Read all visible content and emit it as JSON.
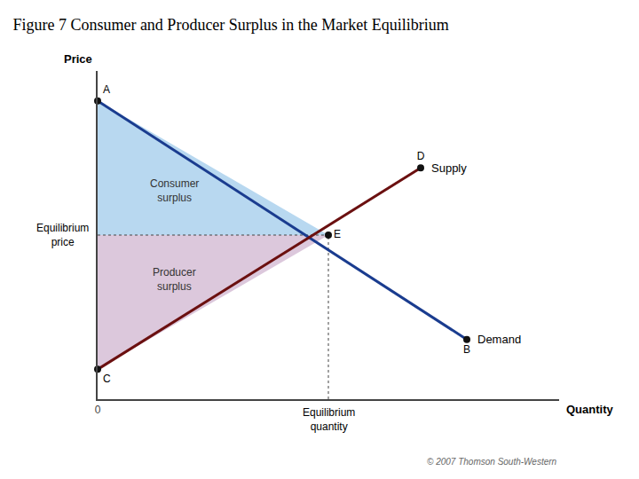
{
  "chart_data": {
    "type": "line",
    "title": "Figure 7 Consumer and Producer Surplus in the Market Equilibrium",
    "x_label": "Quantity",
    "y_label": "Price",
    "xlim": [
      0,
      10
    ],
    "ylim": [
      0,
      11
    ],
    "xticks": [
      0
    ],
    "yticks": [],
    "grid": false,
    "series": [
      {
        "name": "Demand",
        "color": "#1a3c8f",
        "x": [
          0,
          8
        ],
        "values": [
          10,
          2
        ],
        "point_labels": [
          "A",
          "B"
        ]
      },
      {
        "name": "Supply",
        "color": "#6b1010",
        "x": [
          0,
          7
        ],
        "values": [
          1,
          7.75
        ],
        "point_labels": [
          "C",
          "D"
        ]
      }
    ],
    "point_color": "#111111",
    "equilibrium": {
      "x": 5,
      "y": 5.5,
      "label": "E",
      "price_label": "Equilibrium\nprice",
      "quantity_label": "Equilibrium\nquantity",
      "color": "#444444"
    },
    "areas": [
      {
        "name": "Consumer\nsurplus",
        "color": "#b8d8f0",
        "between": "Demand"
      },
      {
        "name": "Producer\nsurplus",
        "color": "#dcc8dc",
        "between": "Supply"
      }
    ],
    "annotations": [
      "© 2007 Thomson South-Western"
    ]
  }
}
